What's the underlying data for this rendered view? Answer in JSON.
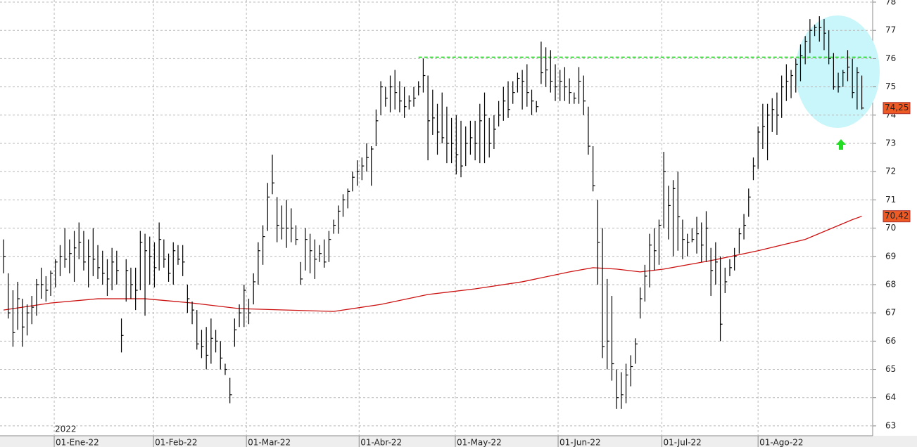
{
  "chart_data": {
    "type": "ohlc",
    "year_label": "2022",
    "color": "#000000",
    "grid": true,
    "xlim": [
      -0.75,
      184.3
    ],
    "ylim": [
      62.65,
      78.075
    ],
    "yticks": [
      63,
      64,
      65,
      66,
      67,
      68,
      69,
      70,
      71,
      72,
      73,
      74,
      75,
      76,
      77,
      78
    ],
    "xticks": [
      {
        "value": 10.75,
        "label": "01-Ene-22"
      },
      {
        "value": 31.8,
        "label": "01-Feb-22"
      },
      {
        "value": 51.5,
        "label": "01-Mar-22"
      },
      {
        "value": 75.4,
        "label": "01-Abr-22"
      },
      {
        "value": 95.8,
        "label": "01-May-22"
      },
      {
        "value": 117.6,
        "label": "01-Jun-22"
      },
      {
        "value": 139.6,
        "label": "01-Jul-22"
      },
      {
        "value": 160,
        "label": "01-Ago-22"
      }
    ],
    "high": [
      69.6,
      68.4,
      67.8,
      68.1,
      67.5,
      67.3,
      67.6,
      68.2,
      68.6,
      68.3,
      68.5,
      68.9,
      69.4,
      70.0,
      69.6,
      69.9,
      70.2,
      69.9,
      69.6,
      70.0,
      69.4,
      69.2,
      68.9,
      69.3,
      69.2,
      66.8,
      68.9,
      68.6,
      68.6,
      69.9,
      69.8,
      69.7,
      69.5,
      70.2,
      69.6,
      69.1,
      69.5,
      69.4,
      69.4,
      68.0,
      67.4,
      67.1,
      66.4,
      66.5,
      66.8,
      66.4,
      66.0,
      65.2,
      64.7,
      66.8,
      67.3,
      68.0,
      67.5,
      68.4,
      69.5,
      70.1,
      71.6,
      72.6,
      71.1,
      70.8,
      71.0,
      70.7,
      70.1,
      68.8,
      70.0,
      69.8,
      69.6,
      69.4,
      69.6,
      69.9,
      70.3,
      70.8,
      71.2,
      71.4,
      72.0,
      72.4,
      72.5,
      73.0,
      72.9,
      74.2,
      75.2,
      75.0,
      75.4,
      75.6,
      75.2,
      75.0,
      74.7,
      75.0,
      75.2,
      76.0,
      75.4,
      74.9,
      74.4,
      74.8,
      74.3,
      73.9,
      74.0,
      73.8,
      73.6,
      73.8,
      73.8,
      74.4,
      74.8,
      73.9,
      74.0,
      74.5,
      75.0,
      75.2,
      75.2,
      75.5,
      75.6,
      75.8,
      74.9,
      74.5,
      76.6,
      76.4,
      76.3,
      75.8,
      75.6,
      75.7,
      75.3,
      74.8,
      75.7,
      75.4,
      74.3,
      72.9,
      71.0,
      70.0,
      68.2,
      67.6,
      65.0,
      64.9,
      65.2,
      65.5,
      66.1,
      67.9,
      68.7,
      69.8,
      70.0,
      70.3,
      72.7,
      71.5,
      71.7,
      72.0,
      70.3,
      69.8,
      70.0,
      70.4,
      70.2,
      70.6,
      69.3,
      69.5,
      69.0,
      68.6,
      68.9,
      69.3,
      70.0,
      70.5,
      71.4,
      72.5,
      73.6,
      74.4,
      74.4,
      74.6,
      74.8,
      75.4,
      75.8,
      75.6,
      76.0,
      76.5,
      76.8,
      77.4,
      77.2,
      77.5,
      77.4,
      77.0,
      76.2,
      75.5,
      75.6,
      76.3,
      76.0,
      75.7,
      75.4
    ],
    "low": [
      68.4,
      66.8,
      65.8,
      66.4,
      65.8,
      66.2,
      66.6,
      66.9,
      67.5,
      67.4,
      67.6,
      67.9,
      68.3,
      68.6,
      68.4,
      68.1,
      68.9,
      68.5,
      67.9,
      68.3,
      68.2,
      68.0,
      67.6,
      67.8,
      68.0,
      65.6,
      67.4,
      67.5,
      67.1,
      67.8,
      66.9,
      68.0,
      67.9,
      68.5,
      68.6,
      68.1,
      68.0,
      68.7,
      68.3,
      67.0,
      66.6,
      65.7,
      65.4,
      65.0,
      65.2,
      65.6,
      65.0,
      64.8,
      63.8,
      65.8,
      66.5,
      66.5,
      66.6,
      67.3,
      68.0,
      68.7,
      69.9,
      71.2,
      69.5,
      69.6,
      69.3,
      69.5,
      69.4,
      68.0,
      68.5,
      68.4,
      68.2,
      68.8,
      68.6,
      68.8,
      69.8,
      69.8,
      70.4,
      70.7,
      71.3,
      71.5,
      71.7,
      72.0,
      71.5,
      72.9,
      74.0,
      74.3,
      74.1,
      74.2,
      74.1,
      73.9,
      74.2,
      74.3,
      74.7,
      74.8,
      72.4,
      73.3,
      72.6,
      73.0,
      72.3,
      72.3,
      71.9,
      71.8,
      72.2,
      72.6,
      72.4,
      72.3,
      72.3,
      72.5,
      72.8,
      73.6,
      73.8,
      73.9,
      74.4,
      74.8,
      74.2,
      74.3,
      74.0,
      74.1,
      75.1,
      75.0,
      74.8,
      74.5,
      74.5,
      74.5,
      74.4,
      74.4,
      74.4,
      74.0,
      72.6,
      71.3,
      68.0,
      65.4,
      65.0,
      64.6,
      63.6,
      63.6,
      63.8,
      64.4,
      65.2,
      66.8,
      67.4,
      67.9,
      68.5,
      68.7,
      70.0,
      69.6,
      69.0,
      69.2,
      68.9,
      69.0,
      69.5,
      69.1,
      68.8,
      68.8,
      67.6,
      68.0,
      66.0,
      67.7,
      68.3,
      68.5,
      69.1,
      69.6,
      70.4,
      71.7,
      72.1,
      72.8,
      72.4,
      73.4,
      73.3,
      73.9,
      74.5,
      74.6,
      74.8,
      75.2,
      75.8,
      76.2,
      76.8,
      76.6,
      76.3,
      75.8,
      74.9,
      74.8,
      75.0,
      75.2,
      74.6,
      74.2,
      74.2
    ],
    "close": [
      69.0,
      67.0,
      66.3,
      67.5,
      66.5,
      67.0,
      67.2,
      68.0,
      68.0,
      67.8,
      68.4,
      68.8,
      69.0,
      68.9,
      69.1,
      69.3,
      69.5,
      68.8,
      69.0,
      68.9,
      68.6,
      68.4,
      68.2,
      68.8,
      68.5,
      66.2,
      68.5,
      68.0,
      67.8,
      69.5,
      69.2,
      69.0,
      68.6,
      69.6,
      68.9,
      68.4,
      69.2,
      68.9,
      68.8,
      67.5,
      67.1,
      65.9,
      65.8,
      65.5,
      66.1,
      66.0,
      65.4,
      65.0,
      64.1,
      66.4,
      67.0,
      67.8,
      67.0,
      68.1,
      69.2,
      69.7,
      71.1,
      71.6,
      70.1,
      70.0,
      70.0,
      70.0,
      69.6,
      68.2,
      69.6,
      69.2,
      68.9,
      69.1,
      68.8,
      69.6,
      70.1,
      70.6,
      71.0,
      71.3,
      71.8,
      72.0,
      72.2,
      72.5,
      72.8,
      73.8,
      75.0,
      74.6,
      75.0,
      74.8,
      74.5,
      74.3,
      74.5,
      74.6,
      75.0,
      75.4,
      73.8,
      73.9,
      73.4,
      73.2,
      73.0,
      73.0,
      72.6,
      72.2,
      73.0,
      73.2,
      73.0,
      73.8,
      74.0,
      73.0,
      73.5,
      74.0,
      74.5,
      74.2,
      74.8,
      75.3,
      75.2,
      74.8,
      74.5,
      74.3,
      75.5,
      75.6,
      75.2,
      75.0,
      75.2,
      75.0,
      74.8,
      74.6,
      75.2,
      74.5,
      72.9,
      71.5,
      69.5,
      65.8,
      66.0,
      65.2,
      64.0,
      64.1,
      64.8,
      65.1,
      65.9,
      67.5,
      68.3,
      69.4,
      69.2,
      70.1,
      72.0,
      70.8,
      71.4,
      70.4,
      69.6,
      69.5,
      69.6,
      69.8,
      69.4,
      70.0,
      68.5,
      68.8,
      66.6,
      68.1,
      68.6,
      69.0,
      69.8,
      70.1,
      71.1,
      72.2,
      73.4,
      73.6,
      74.0,
      74.2,
      74.0,
      75.0,
      75.2,
      75.4,
      75.8,
      76.1,
      76.6,
      77.0,
      77.1,
      77.1,
      76.9,
      76.0,
      75.0,
      75.0,
      75.5,
      75.7,
      74.8,
      75.5,
      74.25
    ],
    "last_label": {
      "value": 74.25,
      "label": "74,25"
    },
    "ma": {
      "color": "#cc1111",
      "x": [
        0,
        10,
        20,
        30,
        40,
        50,
        60,
        70,
        80,
        90,
        100,
        110,
        120,
        125,
        130,
        135,
        140,
        150,
        160,
        170,
        180,
        182
      ],
      "values": [
        67.1,
        67.35,
        67.5,
        67.5,
        67.35,
        67.15,
        67.1,
        67.05,
        67.3,
        67.65,
        67.85,
        68.1,
        68.45,
        68.6,
        68.55,
        68.45,
        68.55,
        68.85,
        69.2,
        69.6,
        70.3,
        70.42
      ],
      "last_label": {
        "value": 70.42,
        "label": "70,42"
      }
    },
    "resistance": {
      "value": 76.05,
      "from": 88,
      "color": "#22dd22"
    }
  }
}
